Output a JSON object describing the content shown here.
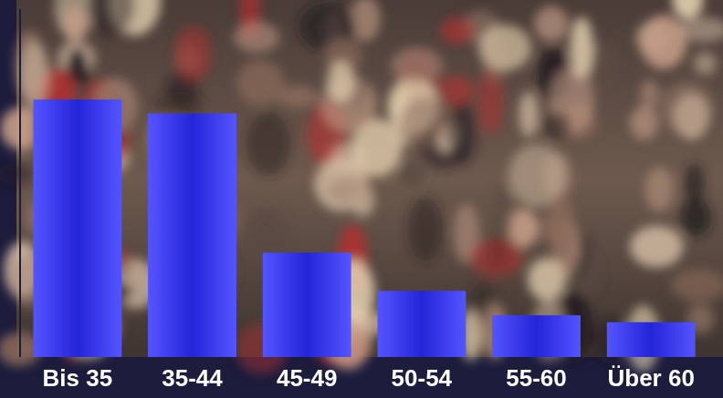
{
  "chart_data": {
    "type": "bar",
    "categories": [
      "Bis 35",
      "35-44",
      "45-49",
      "50-54",
      "55-60",
      "Über 60"
    ],
    "values": [
      74,
      70,
      30,
      19,
      12,
      10
    ],
    "color": "#2a2aff",
    "ylim": [
      0,
      100
    ],
    "tick_labels": "x"
  }
}
